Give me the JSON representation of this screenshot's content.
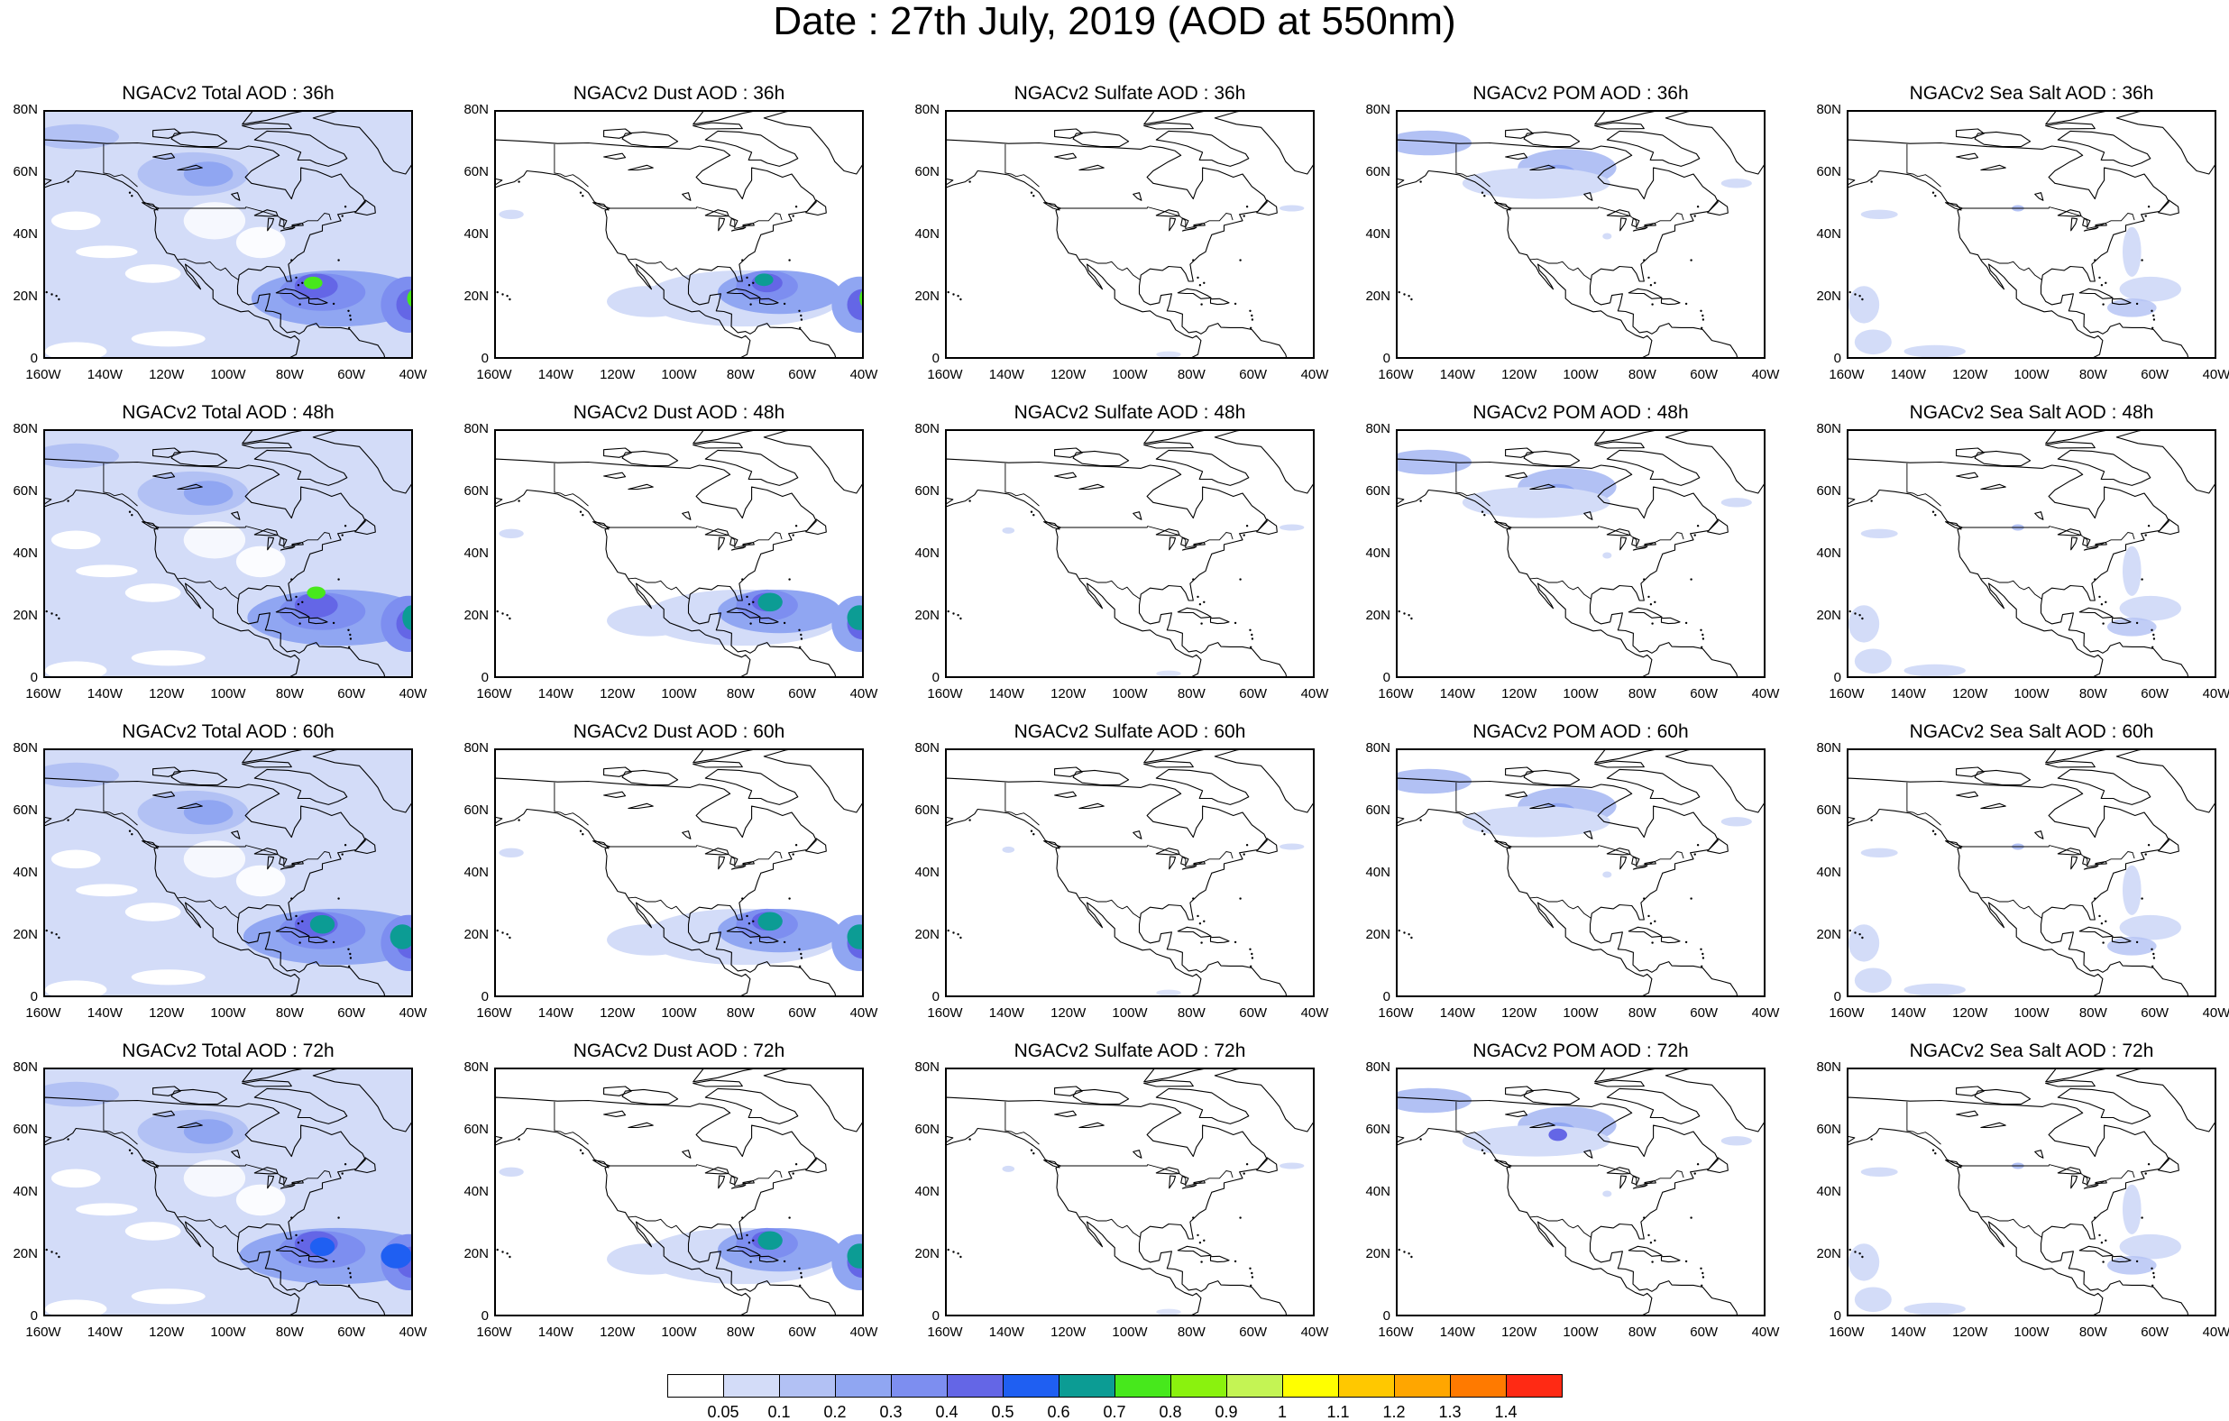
{
  "figure": {
    "title": "Date : 27th July, 2019 (AOD at 550nm)"
  },
  "map_axes": {
    "lat_labels": [
      "80N",
      "60N",
      "40N",
      "20N",
      "0"
    ],
    "lon_labels": [
      "160W",
      "140W",
      "120W",
      "100W",
      "80W",
      "60W",
      "40W"
    ],
    "lat_range": [
      0,
      80
    ],
    "lon_range": [
      -160,
      -40
    ]
  },
  "panels": [
    {
      "title": "NGACv2 Total AOD : 36h",
      "species": "total",
      "forecast_hour": 36
    },
    {
      "title": "NGACv2 Dust AOD : 36h",
      "species": "dust",
      "forecast_hour": 36
    },
    {
      "title": "NGACv2 Sulfate AOD : 36h",
      "species": "sulfate",
      "forecast_hour": 36
    },
    {
      "title": "NGACv2 POM AOD : 36h",
      "species": "pom",
      "forecast_hour": 36
    },
    {
      "title": "NGACv2 Sea Salt AOD : 36h",
      "species": "seasalt",
      "forecast_hour": 36
    },
    {
      "title": "NGACv2 Total AOD : 48h",
      "species": "total",
      "forecast_hour": 48
    },
    {
      "title": "NGACv2 Dust AOD : 48h",
      "species": "dust",
      "forecast_hour": 48
    },
    {
      "title": "NGACv2 Sulfate AOD : 48h",
      "species": "sulfate",
      "forecast_hour": 48
    },
    {
      "title": "NGACv2 POM AOD : 48h",
      "species": "pom",
      "forecast_hour": 48
    },
    {
      "title": "NGACv2 Sea Salt AOD : 48h",
      "species": "seasalt",
      "forecast_hour": 48
    },
    {
      "title": "NGACv2 Total AOD : 60h",
      "species": "total",
      "forecast_hour": 60
    },
    {
      "title": "NGACv2 Dust AOD : 60h",
      "species": "dust",
      "forecast_hour": 60
    },
    {
      "title": "NGACv2 Sulfate AOD : 60h",
      "species": "sulfate",
      "forecast_hour": 60
    },
    {
      "title": "NGACv2 POM AOD : 60h",
      "species": "pom",
      "forecast_hour": 60
    },
    {
      "title": "NGACv2 Sea Salt AOD : 60h",
      "species": "seasalt",
      "forecast_hour": 60
    },
    {
      "title": "NGACv2 Total AOD : 72h",
      "species": "total",
      "forecast_hour": 72
    },
    {
      "title": "NGACv2 Dust AOD : 72h",
      "species": "dust",
      "forecast_hour": 72
    },
    {
      "title": "NGACv2 Sulfate AOD : 72h",
      "species": "sulfate",
      "forecast_hour": 72
    },
    {
      "title": "NGACv2 POM AOD : 72h",
      "species": "pom",
      "forecast_hour": 72
    },
    {
      "title": "NGACv2 Sea Salt  AOD : 72h",
      "species": "seasalt",
      "forecast_hour": 72
    }
  ],
  "colorbar": {
    "colors": [
      "#ffffff",
      "#d3dcf8",
      "#b2c1f4",
      "#90a6f2",
      "#7d8ef0",
      "#6466e6",
      "#1f5ff2",
      "#0c9c94",
      "#47e81c",
      "#8af20e",
      "#c4f454",
      "#ffff00",
      "#ffc800",
      "#ffa600",
      "#ff7a00",
      "#ff2a14"
    ],
    "labels": [
      "0.05",
      "0.1",
      "0.2",
      "0.3",
      "0.4",
      "0.5",
      "0.6",
      "0.7",
      "0.8",
      "0.9",
      "1",
      "1.1",
      "1.2",
      "1.3",
      "1.4"
    ]
  }
}
